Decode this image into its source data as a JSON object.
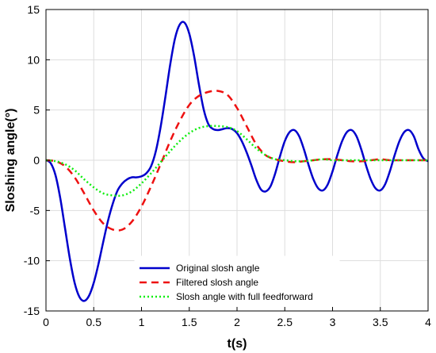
{
  "chart_data": {
    "type": "line",
    "title": "",
    "xlabel": "t(s)",
    "ylabel": "Sloshing  angle(°)",
    "xlim": [
      0,
      4
    ],
    "ylim": [
      -15,
      15
    ],
    "xticks": [
      0,
      0.5,
      1,
      1.5,
      2,
      2.5,
      3,
      3.5,
      4
    ],
    "xtick_labels": [
      "0",
      "0.5",
      "1",
      "1.5",
      "2",
      "2.5",
      "3",
      "3.5",
      "4"
    ],
    "yticks": [
      -15,
      -10,
      -5,
      0,
      5,
      10,
      15
    ],
    "ytick_labels": [
      "-15",
      "-10",
      "-5",
      "0",
      "5",
      "10",
      "15"
    ],
    "grid": true,
    "legend_position": "bottom-center",
    "series": [
      {
        "name": "Original slosh angle",
        "color": "#0000cc",
        "style": "solid",
        "x": [
          0,
          0.05,
          0.1,
          0.15,
          0.2,
          0.25,
          0.3,
          0.35,
          0.4,
          0.45,
          0.5,
          0.55,
          0.6,
          0.65,
          0.7,
          0.75,
          0.8,
          0.85,
          0.9,
          0.95,
          1.0,
          1.05,
          1.1,
          1.15,
          1.2,
          1.25,
          1.3,
          1.35,
          1.4,
          1.45,
          1.5,
          1.55,
          1.6,
          1.65,
          1.7,
          1.75,
          1.8,
          1.85,
          1.9,
          1.95,
          2.0,
          2.05,
          2.1,
          2.15,
          2.2,
          2.25,
          2.3,
          2.35,
          2.4,
          2.45,
          2.5,
          2.55,
          2.6,
          2.65,
          2.7,
          2.75,
          2.8,
          2.85,
          2.9,
          2.95,
          3.0,
          3.05,
          3.1,
          3.15,
          3.2,
          3.25,
          3.3,
          3.35,
          3.4,
          3.45,
          3.5,
          3.55,
          3.6,
          3.65,
          3.7,
          3.75,
          3.8,
          3.85,
          3.9,
          3.95,
          4.0
        ],
        "y": [
          0,
          -0.3,
          -1.5,
          -3.8,
          -6.8,
          -9.8,
          -12.2,
          -13.6,
          -14.0,
          -13.5,
          -12.2,
          -10.3,
          -8.1,
          -6.0,
          -4.3,
          -3.0,
          -2.3,
          -1.9,
          -1.7,
          -1.7,
          -1.6,
          -1.3,
          -0.6,
          0.9,
          3.3,
          6.3,
          9.5,
          12.1,
          13.5,
          13.7,
          12.6,
          10.4,
          7.6,
          5.1,
          3.6,
          3.1,
          3.0,
          3.1,
          3.2,
          3.1,
          2.7,
          1.9,
          0.8,
          -0.5,
          -1.9,
          -2.9,
          -3.1,
          -2.6,
          -1.3,
          0.4,
          1.9,
          2.8,
          3.0,
          2.4,
          1.1,
          -0.5,
          -1.9,
          -2.8,
          -3.0,
          -2.4,
          -1.1,
          0.5,
          1.9,
          2.8,
          3.0,
          2.4,
          1.1,
          -0.5,
          -1.9,
          -2.8,
          -3.0,
          -2.4,
          -1.1,
          0.5,
          1.9,
          2.8,
          3.0,
          2.4,
          1.1,
          0.2,
          -0.1
        ]
      },
      {
        "name": "Filtered slosh angle",
        "color": "#ee1111",
        "style": "dashed",
        "x": [
          0,
          0.1,
          0.2,
          0.3,
          0.4,
          0.5,
          0.6,
          0.7,
          0.8,
          0.9,
          1.0,
          1.1,
          1.2,
          1.3,
          1.4,
          1.5,
          1.6,
          1.7,
          1.8,
          1.9,
          2.0,
          2.1,
          2.2,
          2.3,
          2.4,
          2.5,
          2.6,
          2.7,
          2.8,
          2.9,
          3.0,
          3.1,
          3.2,
          3.3,
          3.4,
          3.5,
          3.6,
          3.7,
          3.8,
          3.9,
          4.0
        ],
        "y": [
          0,
          -0.1,
          -0.6,
          -1.7,
          -3.3,
          -5.0,
          -6.3,
          -6.9,
          -6.9,
          -6.1,
          -4.6,
          -2.6,
          -0.4,
          1.9,
          3.9,
          5.5,
          6.4,
          6.8,
          6.9,
          6.5,
          5.2,
          3.4,
          1.6,
          0.5,
          0.1,
          -0.1,
          -0.2,
          -0.1,
          0.0,
          0.1,
          0.1,
          0.0,
          -0.1,
          -0.1,
          0.0,
          0.1,
          0.0,
          0.0,
          0.0,
          0.0,
          0.0
        ]
      },
      {
        "name": "Slosh  angle with full feedforward",
        "color": "#11ee11",
        "style": "dotted",
        "x": [
          0,
          0.1,
          0.2,
          0.3,
          0.4,
          0.5,
          0.6,
          0.7,
          0.8,
          0.9,
          1.0,
          1.1,
          1.2,
          1.3,
          1.4,
          1.5,
          1.6,
          1.7,
          1.8,
          1.9,
          2.0,
          2.1,
          2.2,
          2.3,
          2.4,
          2.5,
          2.6,
          2.7,
          2.8,
          2.9,
          3.0,
          3.1,
          3.2,
          3.3,
          3.4,
          3.5,
          3.6,
          3.7,
          3.8,
          3.9,
          4.0
        ],
        "y": [
          0,
          -0.1,
          -0.4,
          -1.0,
          -1.9,
          -2.7,
          -3.3,
          -3.5,
          -3.5,
          -3.1,
          -2.3,
          -1.3,
          -0.2,
          0.9,
          1.9,
          2.7,
          3.2,
          3.4,
          3.4,
          3.3,
          2.9,
          2.1,
          1.2,
          0.5,
          0.1,
          0.0,
          -0.1,
          -0.1,
          0.0,
          0.1,
          0.0,
          0.0,
          0.0,
          0.0,
          0.0,
          0.0,
          0.0,
          0.0,
          0.0,
          0.0,
          0.0
        ]
      }
    ]
  }
}
